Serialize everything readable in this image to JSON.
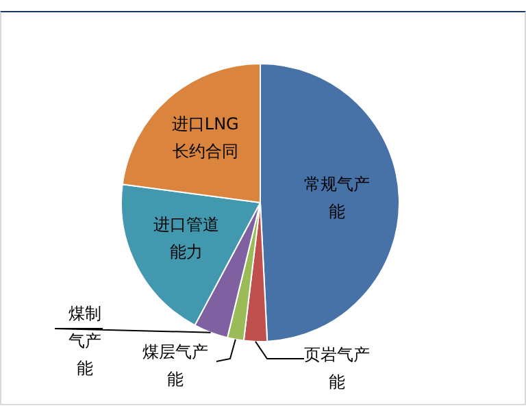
{
  "chart_data": {
    "type": "pie",
    "categories": [
      "常规气产能",
      "页岩气产能",
      "煤层气产能",
      "煤制气产能",
      "进口管道能力",
      "进口LNG长约合同"
    ],
    "values": [
      49.2,
      2.7,
      1.9,
      4.0,
      19.3,
      22.9
    ],
    "colors": [
      "#4672a8",
      "#c0504d",
      "#9bbb59",
      "#7f60a0",
      "#4198af",
      "#db843d"
    ],
    "legend": false
  }
}
